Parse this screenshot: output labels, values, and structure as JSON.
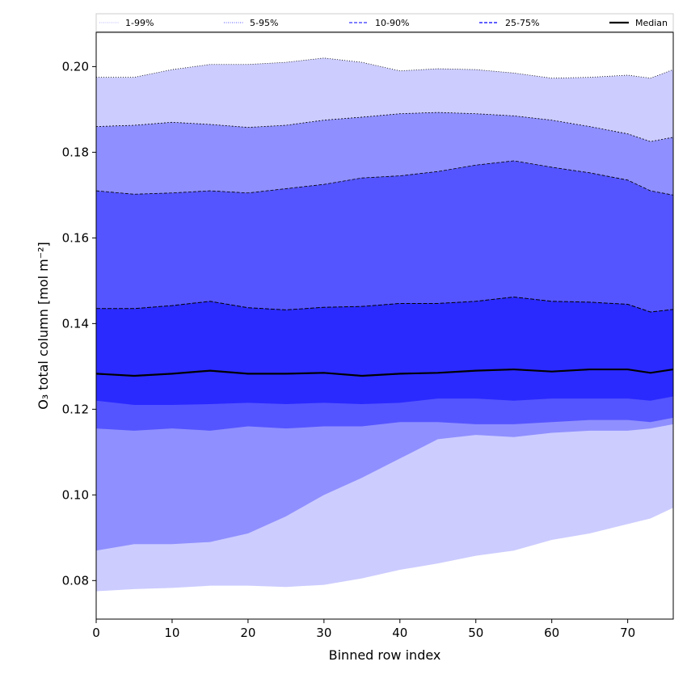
{
  "chart_data": {
    "type": "area",
    "title": "",
    "xlabel": "Binned row index",
    "ylabel": "O₃ total column [mol m⁻²]",
    "xlim": [
      0,
      76
    ],
    "ylim": [
      0.071,
      0.208
    ],
    "xticks": [
      0,
      10,
      20,
      30,
      40,
      50,
      60,
      70
    ],
    "yticks": [
      0.08,
      0.1,
      0.12,
      0.14,
      0.16,
      0.18,
      0.2
    ],
    "grid": false,
    "legend_position": "top",
    "colors": {
      "band_1_99": "#ccccff",
      "band_5_95": "#8f8fff",
      "band_10_90": "#5555ff",
      "band_25_75": "#2a2aff",
      "median": "#000000",
      "edge": "#000000"
    },
    "x": [
      0,
      5,
      10,
      15,
      20,
      25,
      30,
      35,
      40,
      45,
      50,
      55,
      60,
      65,
      70,
      73,
      76
    ],
    "bands": [
      {
        "name": "1-99%",
        "lower": [
          0.0775,
          0.078,
          0.0783,
          0.0788,
          0.0788,
          0.0785,
          0.079,
          0.0805,
          0.0825,
          0.084,
          0.0858,
          0.087,
          0.0895,
          0.091,
          0.0932,
          0.0945,
          0.097
        ],
        "upper": [
          0.1975,
          0.1975,
          0.1993,
          0.2005,
          0.2005,
          0.201,
          0.202,
          0.201,
          0.199,
          0.1995,
          0.1993,
          0.1985,
          0.1973,
          0.1975,
          0.198,
          0.1973,
          0.1993
        ]
      },
      {
        "name": "5-95%",
        "lower": [
          0.087,
          0.0885,
          0.0885,
          0.089,
          0.091,
          0.095,
          0.1,
          0.104,
          0.1085,
          0.113,
          0.114,
          0.1135,
          0.1145,
          0.115,
          0.115,
          0.1155,
          0.1165
        ],
        "upper": [
          0.186,
          0.1863,
          0.187,
          0.1865,
          0.1858,
          0.1863,
          0.1875,
          0.1882,
          0.189,
          0.1893,
          0.189,
          0.1885,
          0.1875,
          0.186,
          0.1843,
          0.1825,
          0.1835
        ]
      },
      {
        "name": "10-90%",
        "lower": [
          0.1155,
          0.115,
          0.1155,
          0.115,
          0.116,
          0.1155,
          0.116,
          0.116,
          0.117,
          0.117,
          0.1165,
          0.1165,
          0.117,
          0.1175,
          0.1175,
          0.117,
          0.118
        ],
        "upper": [
          0.171,
          0.1702,
          0.1705,
          0.171,
          0.1705,
          0.1715,
          0.1725,
          0.174,
          0.1745,
          0.1755,
          0.177,
          0.178,
          0.1765,
          0.1752,
          0.1735,
          0.171,
          0.17
        ]
      },
      {
        "name": "25-75%",
        "lower": [
          0.122,
          0.121,
          0.121,
          0.1212,
          0.1215,
          0.1212,
          0.1215,
          0.1212,
          0.1215,
          0.1225,
          0.1225,
          0.122,
          0.1225,
          0.1225,
          0.1225,
          0.122,
          0.123
        ],
        "upper": [
          0.1435,
          0.1435,
          0.1442,
          0.1452,
          0.1437,
          0.1432,
          0.1438,
          0.144,
          0.1447,
          0.1447,
          0.1452,
          0.1462,
          0.1452,
          0.145,
          0.1445,
          0.1427,
          0.1433
        ]
      }
    ],
    "median": {
      "name": "Median",
      "values": [
        0.1283,
        0.1278,
        0.1283,
        0.129,
        0.1283,
        0.1283,
        0.1285,
        0.1278,
        0.1283,
        0.1285,
        0.129,
        0.1293,
        0.1288,
        0.1293,
        0.1293,
        0.1285,
        0.1293
      ]
    },
    "legend": [
      {
        "label": "1-99%",
        "style": "dotted",
        "color": "#ccccff"
      },
      {
        "label": "5-95%",
        "style": "dotted",
        "color": "#8f8fff"
      },
      {
        "label": "10-90%",
        "style": "dashed",
        "color": "#5555ff"
      },
      {
        "label": "25-75%",
        "style": "dashed",
        "color": "#2a2aff"
      },
      {
        "label": "Median",
        "style": "solid",
        "color": "#000000"
      }
    ]
  }
}
